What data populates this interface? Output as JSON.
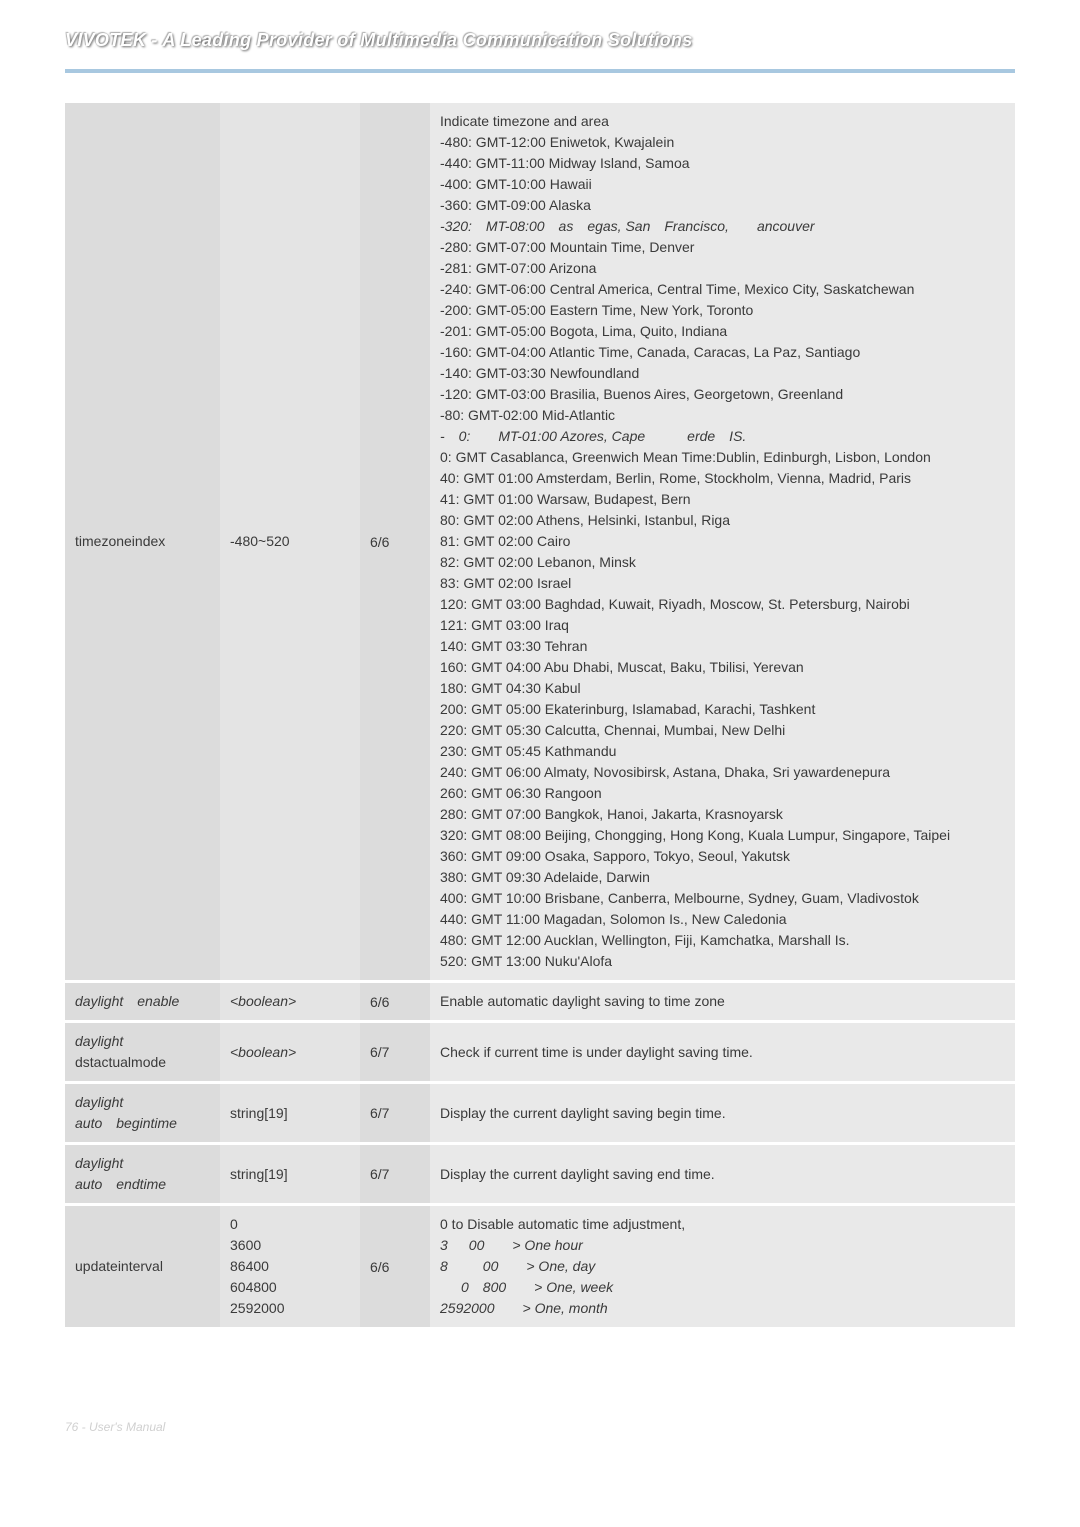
{
  "header": {
    "title": "VIVOTEK - A Leading Provider of Multimedia Communication Solutions"
  },
  "rows": [
    {
      "name": "timezoneindex",
      "value": "-480~520",
      "sec": "6/6",
      "desc_html": "Indicate timezone and area\n-480: GMT-12:00 Eniwetok, Kwajalein\n-440: GMT-11:00 Midway Island, Samoa\n-400: GMT-10:00 Hawaii\n-360: GMT-09:00 Alaska\n<span class=\"italic\">-320: MT-08:00 as egas, San Francisco,  ancouver</span>\n-280: GMT-07:00 Mountain Time, Denver\n-281: GMT-07:00 Arizona\n-240: GMT-06:00 Central America, Central Time, Mexico City, Saskatchewan\n-200: GMT-05:00 Eastern Time, New York, Toronto\n-201: GMT-05:00 Bogota, Lima, Quito, Indiana\n-160: GMT-04:00 Atlantic Time, Canada, Caracas, La Paz, Santiago\n-140: GMT-03:30 Newfoundland\n-120: GMT-03:00 Brasilia, Buenos Aires, Georgetown, Greenland\n-80: GMT-02:00 Mid-Atlantic\n<span class=\"italic\">- 0:  MT-01:00 Azores, Cape   erde IS.</span>\n0: GMT Casablanca, Greenwich Mean Time:Dublin, Edinburgh, Lisbon, London\n40: GMT 01:00 Amsterdam, Berlin, Rome, Stockholm, Vienna, Madrid, Paris\n41: GMT 01:00 Warsaw, Budapest, Bern\n80: GMT 02:00 Athens, Helsinki, Istanbul, Riga\n81: GMT 02:00 Cairo\n82: GMT 02:00 Lebanon, Minsk\n83: GMT 02:00 Israel\n120: GMT 03:00 Baghdad, Kuwait, Riyadh, Moscow, St. Petersburg, Nairobi\n121: GMT 03:00 Iraq\n140: GMT 03:30 Tehran\n160: GMT 04:00 Abu Dhabi, Muscat, Baku, Tbilisi, Yerevan\n180: GMT 04:30 Kabul\n200: GMT 05:00 Ekaterinburg, Islamabad, Karachi, Tashkent\n220: GMT 05:30 Calcutta, Chennai, Mumbai, New Delhi\n230: GMT 05:45 Kathmandu\n240: GMT 06:00 Almaty, Novosibirsk, Astana, Dhaka, Sri yawardenepura\n260: GMT 06:30 Rangoon\n280: GMT 07:00 Bangkok, Hanoi, Jakarta, Krasnoyarsk\n320: GMT 08:00 Beijing, Chongging, Hong Kong, Kuala Lumpur, Singapore, Taipei\n360: GMT 09:00 Osaka, Sapporo, Tokyo, Seoul, Yakutsk\n380: GMT 09:30 Adelaide, Darwin\n400: GMT 10:00 Brisbane, Canberra, Melbourne, Sydney, Guam, Vladivostok\n440: GMT 11:00 Magadan, Solomon Is., New Caledonia\n480: GMT 12:00 Aucklan, Wellington, Fiji, Kamchatka, Marshall Is.\n520: GMT 13:00 Nuku'Alofa"
    },
    {
      "name_html": "<span class=\"italic\">daylight enable</span>",
      "value_html": "<span class=\"italic\">&lt;boolean&gt;</span>",
      "sec": "6/6",
      "desc": "Enable automatic daylight saving to time zone"
    },
    {
      "name_html": "<span class=\"italic\">daylight</span>\ndstactualmode",
      "value_html": "<span class=\"italic\">&lt;boolean&gt;</span>",
      "sec": "6/7",
      "desc": "Check if current time is under daylight saving time."
    },
    {
      "name_html": "<span class=\"italic\">daylight\nauto begintime</span>",
      "value": "string[19]",
      "sec": "6/7",
      "desc": "Display the current daylight saving begin time."
    },
    {
      "name_html": "<span class=\"italic\">daylight\nauto endtime</span>",
      "value": "string[19]",
      "sec": "6/7",
      "desc": "Display the current daylight saving end time."
    },
    {
      "name": "updateinterval",
      "value_html": "0\n3600\n86400\n604800\n2592000",
      "sec": "6/6",
      "desc_html": "0 to Disable automatic time adjustment,\n<span class=\"italic\">3  00  > One hour</span>\n<span class=\"italic\">8   00  > One, day</span>\n<span class=\"italic\">  0 800  > One, week</span>\n<span class=\"italic\">2592000  > One, month</span>"
    }
  ],
  "footer": {
    "text": "76 - User's Manual"
  },
  "colors": {
    "header_border": "#a8c8e0",
    "col1_bg": "#dcdcdc",
    "col2_bg": "#e4e4e4",
    "col3_bg": "#dcdcdc",
    "col4_bg": "#e9e9e9",
    "text": "#3a3a3a",
    "footer_text": "#d0d0d0"
  }
}
